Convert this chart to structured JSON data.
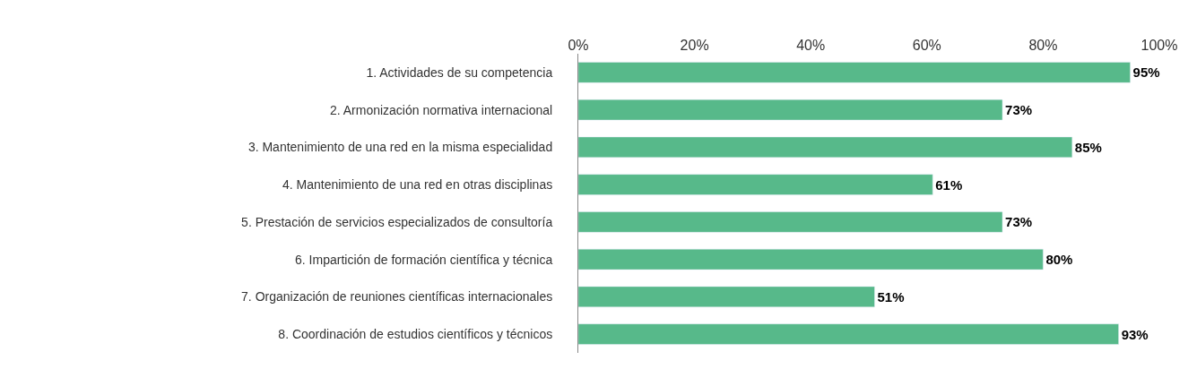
{
  "chart_data": {
    "type": "bar",
    "orientation": "horizontal",
    "categories": [
      "1. Actividades de su competencia",
      "2. Armonización normativa internacional",
      "3. Mantenimiento de una red en la misma especialidad",
      "4. Mantenimiento de una red en otras disciplinas",
      "5. Prestación de servicios especializados de consultoría",
      "6. Impartición de formación científica y técnica",
      "7. Organización de reuniones científicas internacionales",
      "8. Coordinación de estudios científicos y técnicos"
    ],
    "values": [
      95,
      73,
      85,
      61,
      73,
      80,
      51,
      93
    ],
    "value_labels": [
      "95%",
      "73%",
      "85%",
      "61%",
      "73%",
      "80%",
      "51%",
      "93%"
    ],
    "color": "#57b98a",
    "xlim": [
      0,
      100
    ],
    "xticks": [
      {
        "value": 0,
        "label": "0%"
      },
      {
        "value": 20,
        "label": "20%"
      },
      {
        "value": 40,
        "label": "40%"
      },
      {
        "value": 60,
        "label": "60%"
      },
      {
        "value": 80,
        "label": "80%"
      },
      {
        "value": 100,
        "label": "100%"
      }
    ],
    "legend": false
  }
}
